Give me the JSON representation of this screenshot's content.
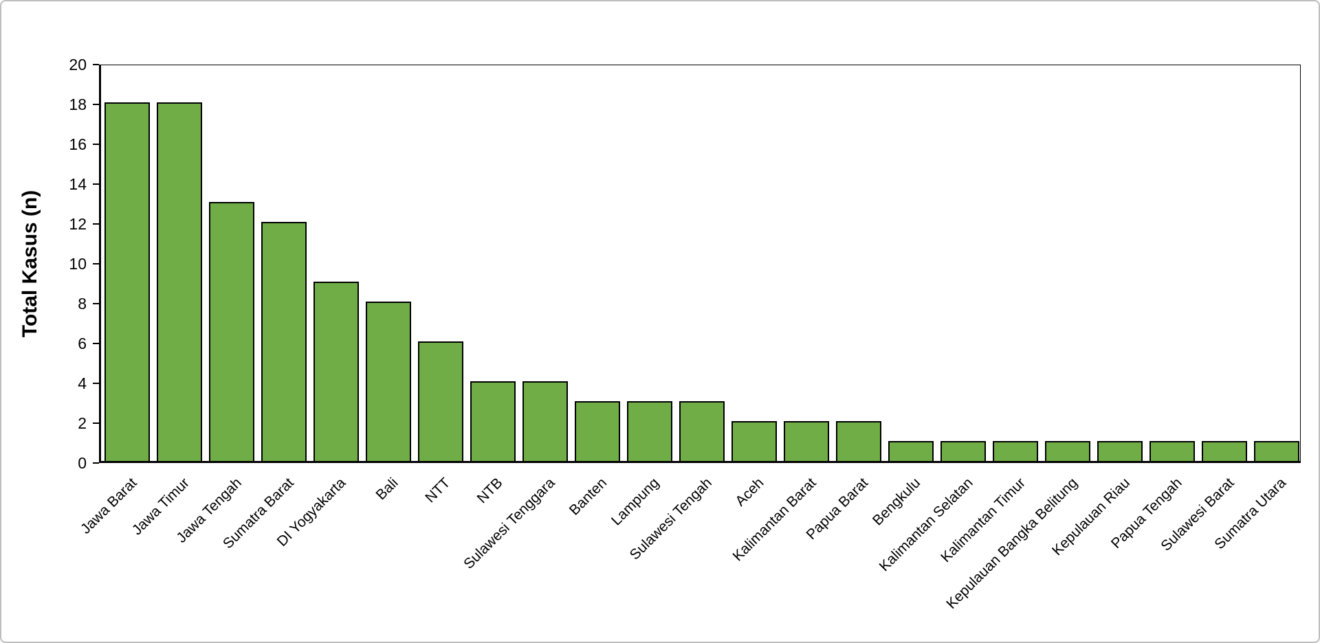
{
  "chart_data": {
    "type": "bar",
    "title": "",
    "xlabel": "",
    "ylabel": "Total Kasus (n)",
    "ylim": [
      0,
      20
    ],
    "ytick_step": 2,
    "yticks": [
      0,
      2,
      4,
      6,
      8,
      10,
      12,
      14,
      16,
      18,
      20
    ],
    "grid": false,
    "legend": "none",
    "bar_color": "#70AD47",
    "bar_border_color": "#000000",
    "categories": [
      "Jawa Barat",
      "Jawa Timur",
      "Jawa Tengah",
      "Sumatra Barat",
      "DI Yogyakarta",
      "Bali",
      "NTT",
      "NTB",
      "Sulawesi Tenggara",
      "Banten",
      "Lampung",
      "Sulawesi Tengah",
      "Aceh",
      "Kalimantan Barat",
      "Papua Barat",
      "Bengkulu",
      "Kalimantan Selatan",
      "Kalimantan Timur",
      "Kepulauan Bangka Belitung",
      "Kepulauan Riau",
      "Papua Tengah",
      "Sulawesi Barat",
      "Sumatra Utara"
    ],
    "values": [
      18,
      18,
      13,
      12,
      9,
      8,
      6,
      4,
      4,
      3,
      3,
      3,
      2,
      2,
      2,
      1,
      1,
      1,
      1,
      1,
      1,
      1,
      1
    ]
  }
}
